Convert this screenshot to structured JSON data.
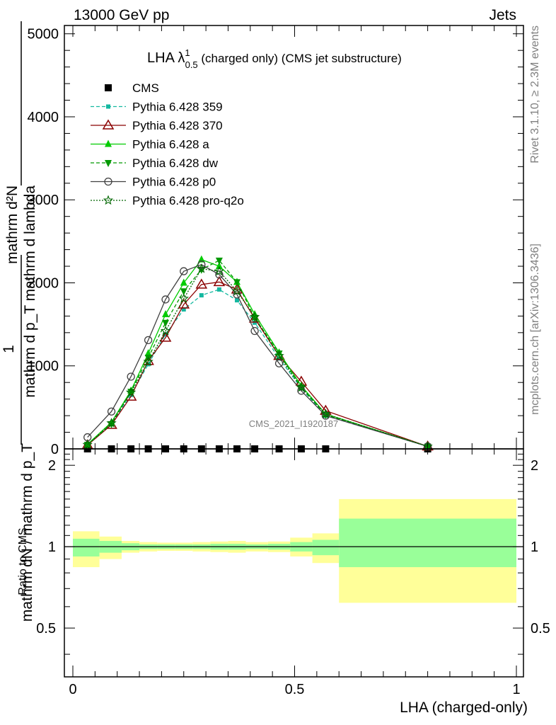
{
  "header": {
    "left": "13000 GeV pp",
    "right": "Jets"
  },
  "title": {
    "main": "LHA λ",
    "sup": "1",
    "sub": "0.5",
    "rest": " (charged only) (CMS jet substructure)"
  },
  "watermark": "CMS_2021_I1920187",
  "side_text": {
    "top": "Rivet 3.1.10, ≥ 2.3M events",
    "bottom": "mcplots.cern.ch [arXiv:1306.3436]"
  },
  "ylabel_main": {
    "numerator": "mathrm d²N",
    "denominator": "mathrm d p_T mathrm d lambda",
    "front_num": "1",
    "front_den": "mathrm dN / mathrm d p_T"
  },
  "chart_data": [
    {
      "type": "line",
      "panel": "main",
      "xlim": [
        0,
        1
      ],
      "ylim": [
        0,
        5100
      ],
      "x_ticks": [
        0,
        0.5,
        1
      ],
      "y_ticks": [
        0,
        1000,
        2000,
        3000,
        4000,
        5000
      ],
      "y_tick_labels": [
        "0",
        "1000",
        "2000",
        "3000",
        "4000",
        "5000"
      ],
      "xlabel": "LHA (charged-only)",
      "legend_position": "top-left",
      "x": [
        0.033,
        0.087,
        0.131,
        0.17,
        0.209,
        0.25,
        0.29,
        0.33,
        0.37,
        0.41,
        0.465,
        0.515,
        0.57,
        0.8
      ],
      "series": [
        {
          "name": "CMS",
          "color": "#000000",
          "marker": "square",
          "values": [
            0,
            0,
            0,
            0,
            0,
            0,
            0,
            0,
            0,
            0,
            0,
            0,
            0,
            0
          ]
        },
        {
          "name": "Pythia 6.428 359",
          "color": "#14b8a0",
          "marker": "square-small",
          "dash": "dashed",
          "values": [
            60,
            300,
            650,
            1020,
            1380,
            1680,
            1850,
            1920,
            1790,
            1520,
            1090,
            730,
            400,
            30
          ]
        },
        {
          "name": "Pythia 6.428 370",
          "color": "#8b0000",
          "marker": "triangle-open",
          "dash": "solid",
          "values": [
            45,
            290,
            630,
            1060,
            1340,
            1740,
            1980,
            2010,
            1920,
            1570,
            1120,
            810,
            460,
            30
          ]
        },
        {
          "name": "Pythia 6.428 a",
          "color": "#00cc00",
          "marker": "triangle",
          "dash": "solid",
          "values": [
            55,
            320,
            700,
            1150,
            1620,
            2000,
            2280,
            2200,
            2010,
            1620,
            1160,
            760,
            420,
            30
          ]
        },
        {
          "name": "Pythia 6.428 dw",
          "color": "#009900",
          "marker": "triangle-down",
          "dash": "dashed",
          "values": [
            50,
            300,
            690,
            1100,
            1520,
            1900,
            2160,
            2270,
            2010,
            1580,
            1150,
            740,
            410,
            30
          ]
        },
        {
          "name": "Pythia 6.428 p0",
          "color": "#404040",
          "marker": "circle-open",
          "dash": "solid",
          "values": [
            140,
            450,
            870,
            1310,
            1800,
            2140,
            2220,
            2100,
            1860,
            1420,
            1030,
            700,
            400,
            30
          ]
        },
        {
          "name": "Pythia 6.428 pro-q2o",
          "color": "#006600",
          "marker": "star",
          "dash": "dotted",
          "values": [
            50,
            310,
            680,
            1050,
            1420,
            1810,
            2170,
            2140,
            1900,
            1590,
            1120,
            740,
            420,
            30
          ]
        }
      ]
    },
    {
      "type": "area",
      "panel": "ratio",
      "ylabel": "Ratio to CMS",
      "ylim": [
        0.33,
        2.3
      ],
      "y_ticks": [
        0.5,
        1,
        2
      ],
      "y_tick_labels": [
        "0.5",
        "1",
        "2"
      ],
      "reference": 1,
      "bins": [
        {
          "x0": 0.0,
          "x1": 0.06,
          "band_outer": [
            0.84,
            1.14
          ],
          "band_inner": [
            0.92,
            1.07
          ]
        },
        {
          "x0": 0.06,
          "x1": 0.11,
          "band_outer": [
            0.9,
            1.09
          ],
          "band_inner": [
            0.95,
            1.05
          ]
        },
        {
          "x0": 0.11,
          "x1": 0.15,
          "band_outer": [
            0.95,
            1.05
          ],
          "band_inner": [
            0.97,
            1.03
          ]
        },
        {
          "x0": 0.15,
          "x1": 0.19,
          "band_outer": [
            0.96,
            1.04
          ],
          "band_inner": [
            0.98,
            1.02
          ]
        },
        {
          "x0": 0.19,
          "x1": 0.23,
          "band_outer": [
            0.965,
            1.035
          ],
          "band_inner": [
            0.98,
            1.02
          ]
        },
        {
          "x0": 0.23,
          "x1": 0.27,
          "band_outer": [
            0.965,
            1.035
          ],
          "band_inner": [
            0.98,
            1.02
          ]
        },
        {
          "x0": 0.27,
          "x1": 0.31,
          "band_outer": [
            0.96,
            1.04
          ],
          "band_inner": [
            0.98,
            1.02
          ]
        },
        {
          "x0": 0.31,
          "x1": 0.35,
          "band_outer": [
            0.955,
            1.045
          ],
          "band_inner": [
            0.975,
            1.025
          ]
        },
        {
          "x0": 0.35,
          "x1": 0.39,
          "band_outer": [
            0.95,
            1.05
          ],
          "band_inner": [
            0.975,
            1.025
          ]
        },
        {
          "x0": 0.39,
          "x1": 0.44,
          "band_outer": [
            0.96,
            1.04
          ],
          "band_inner": [
            0.98,
            1.02
          ]
        },
        {
          "x0": 0.44,
          "x1": 0.49,
          "band_outer": [
            0.955,
            1.045
          ],
          "band_inner": [
            0.975,
            1.025
          ]
        },
        {
          "x0": 0.49,
          "x1": 0.54,
          "band_outer": [
            0.92,
            1.08
          ],
          "band_inner": [
            0.96,
            1.04
          ]
        },
        {
          "x0": 0.54,
          "x1": 0.6,
          "band_outer": [
            0.87,
            1.12
          ],
          "band_inner": [
            0.93,
            1.06
          ]
        },
        {
          "x0": 0.6,
          "x1": 1.0,
          "band_outer": [
            0.62,
            1.5
          ],
          "band_inner": [
            0.84,
            1.27
          ]
        }
      ],
      "band_colors": {
        "outer": "#ffff99",
        "inner": "#99ff99"
      }
    }
  ]
}
